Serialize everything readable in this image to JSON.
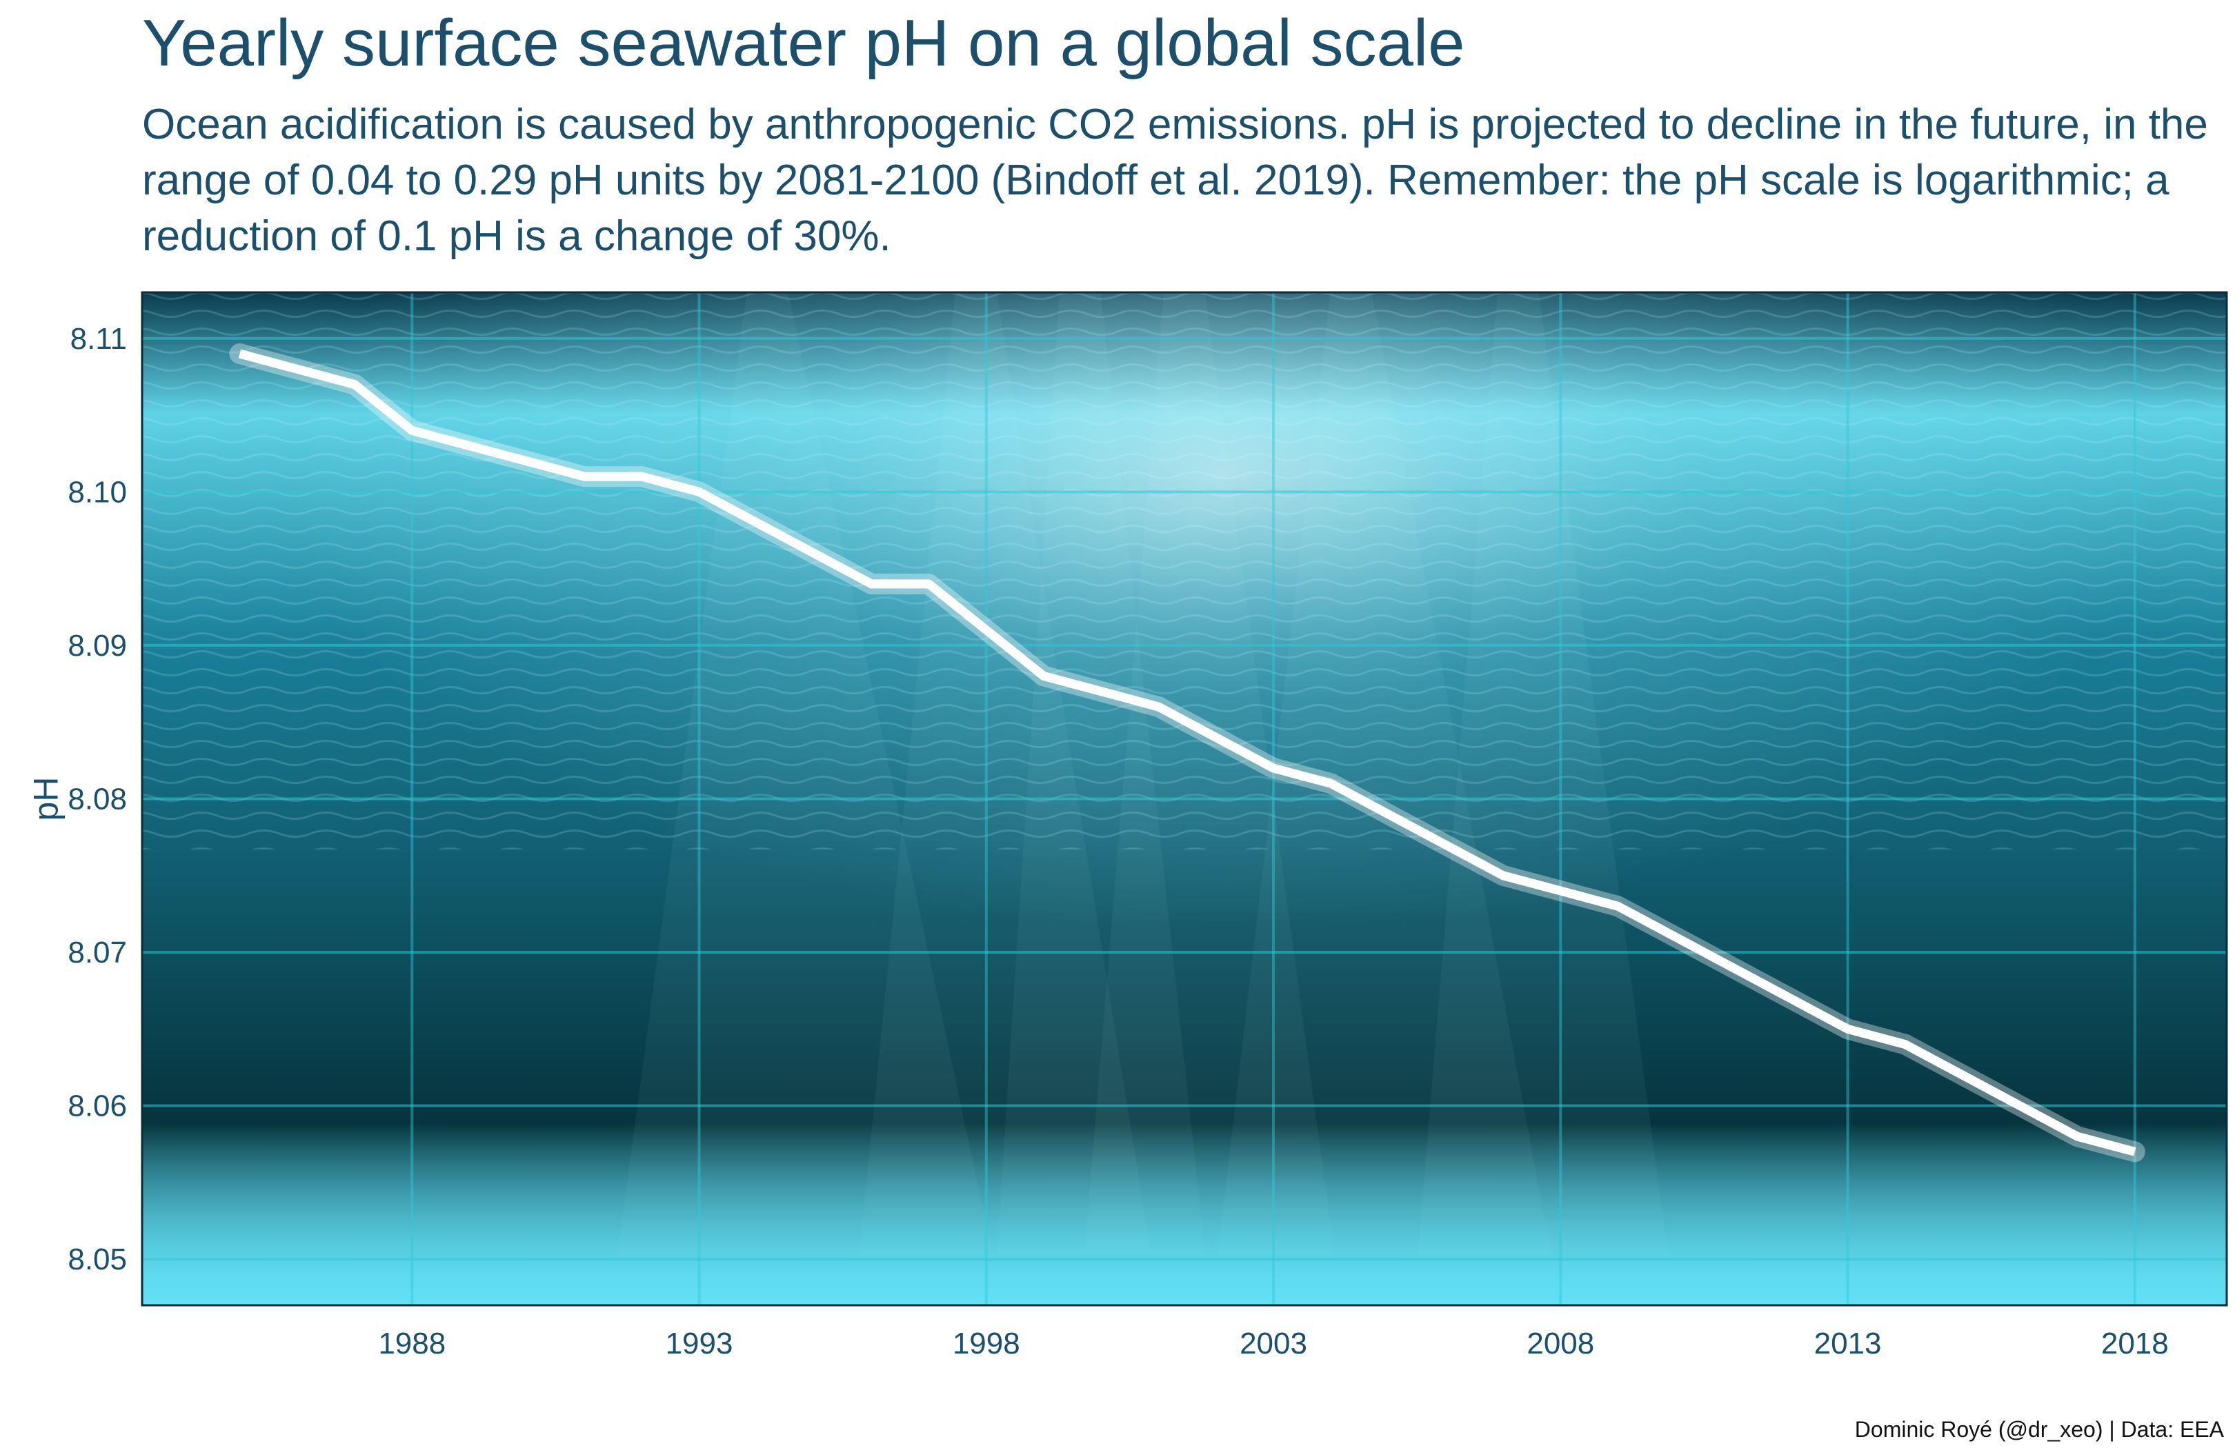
{
  "header": {
    "title": "Yearly surface seawater pH on a global scale",
    "subtitle": "Ocean acidification is caused by anthropogenic CO2 emissions. pH is projected to decline in the future, in the range of 0.04 to 0.29 pH units by 2081-2100 (Bindoff et al. 2019). Remember: the pH scale is logarithmic; a reduction of 0.1 pH is a change of 30%."
  },
  "footer": {
    "caption": "Dominic Royé (@dr_xeo) | Data: EEA"
  },
  "colors": {
    "text": "#1b4f6b",
    "grid": "#2ec9d6",
    "line": "#ffffff",
    "water_top": "#0b3b4e",
    "water_light": "#5fd3e6",
    "water_deep": "#06343e",
    "water_bottom": "#62e0f5"
  },
  "chart_data": {
    "type": "line",
    "title": "Yearly surface seawater pH on a global scale",
    "xlabel": "",
    "ylabel": "pH",
    "xlim": [
      1983.3,
      2019.6
    ],
    "ylim": [
      8.047,
      8.113
    ],
    "x_ticks": [
      1988,
      1993,
      1998,
      2003,
      2008,
      2013,
      2018
    ],
    "y_ticks": [
      8.05,
      8.06,
      8.07,
      8.08,
      8.09,
      8.1,
      8.11
    ],
    "y_tick_labels": [
      "8.05",
      "8.06",
      "8.07",
      "8.08",
      "8.09",
      "8.10",
      "8.11"
    ],
    "grid": true,
    "legend": "none",
    "x": [
      1985,
      1986,
      1987,
      1988,
      1989,
      1990,
      1991,
      1992,
      1993,
      1994,
      1995,
      1996,
      1997,
      1998,
      1999,
      2000,
      2001,
      2002,
      2003,
      2004,
      2005,
      2006,
      2007,
      2008,
      2009,
      2010,
      2011,
      2012,
      2013,
      2014,
      2015,
      2016,
      2017,
      2018
    ],
    "series": [
      {
        "values": [
          8.109,
          8.108,
          8.107,
          8.104,
          8.103,
          8.102,
          8.101,
          8.101,
          8.1,
          8.098,
          8.096,
          8.094,
          8.094,
          8.091,
          8.088,
          8.087,
          8.086,
          8.084,
          8.082,
          8.081,
          8.079,
          8.077,
          8.075,
          8.074,
          8.073,
          8.071,
          8.069,
          8.067,
          8.065,
          8.064,
          8.062,
          8.06,
          8.058,
          8.057
        ]
      }
    ]
  }
}
